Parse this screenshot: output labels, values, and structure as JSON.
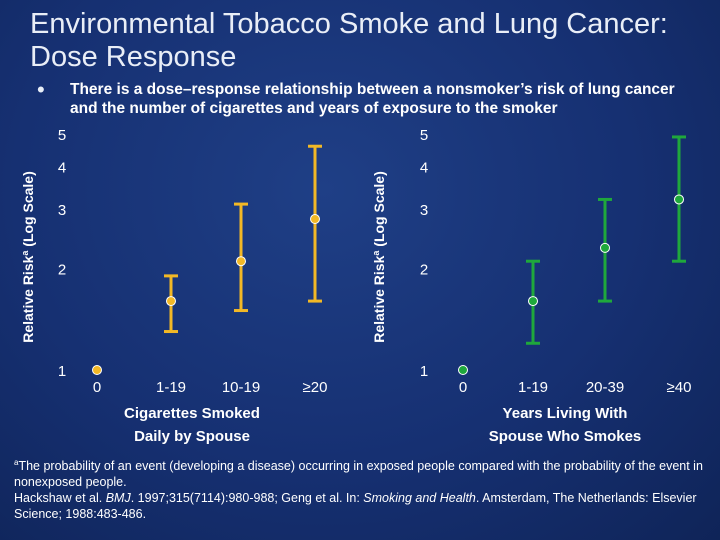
{
  "title": "Environmental Tobacco Smoke and Lung Cancer: Dose Response",
  "bullet": "There is a dose–response relationship between a nonsmoker’s risk of lung cancer and the number of cigarettes and years of exposure to the smoker",
  "footnote": {
    "marker": "a",
    "definition": "The probability of an event (developing a disease) occurring in exposed people compared with the probability of the event in nonexposed people.",
    "ref1_pre": "Hackshaw et al. ",
    "ref1_journal": "BMJ",
    "ref1_post": ". 1997;315(7114):980-988; Geng et al. In: ",
    "ref2_book": "Smoking and Health",
    "ref2_post": ". Amsterdam, The Netherlands: Elsevier Science; 1988:483-486."
  },
  "chart_data": [
    {
      "type": "scatter",
      "scale": "log",
      "ylabel": "Relative Risk",
      "ylabel_superscript": "a",
      "ylabel_suffix": " (Log Scale)",
      "yticks": [
        1,
        2,
        3,
        4,
        5
      ],
      "ylim": [
        1,
        5
      ],
      "categories": [
        "0",
        "1-19",
        "10-19",
        "≥20"
      ],
      "xlabel_line1": "Cigarettes Smoked",
      "xlabel_line2": "Daily by Spouse",
      "color": "#f2b826",
      "points": [
        {
          "x": "0",
          "y": 1.0,
          "low": null,
          "high": null
        },
        {
          "x": "1-19",
          "y": 1.6,
          "low": 1.3,
          "high": 1.9
        },
        {
          "x": "10-19",
          "y": 2.1,
          "low": 1.5,
          "high": 3.1
        },
        {
          "x": "≥20",
          "y": 2.8,
          "low": 1.6,
          "high": 4.6
        }
      ]
    },
    {
      "type": "scatter",
      "scale": "log",
      "ylabel": "Relative Risk",
      "ylabel_superscript": "a",
      "ylabel_suffix": " (Log Scale)",
      "yticks": [
        1,
        2,
        3,
        4,
        5
      ],
      "ylim": [
        1,
        5
      ],
      "categories": [
        "0",
        "1-19",
        "20-39",
        "≥40"
      ],
      "xlabel_line1": "Years Living With",
      "xlabel_line2": "Spouse Who Smokes",
      "color": "#1fa83c",
      "points": [
        {
          "x": "0",
          "y": 1.0,
          "low": null,
          "high": null
        },
        {
          "x": "1-19",
          "y": 1.6,
          "low": 1.2,
          "high": 2.1
        },
        {
          "x": "20-39",
          "y": 2.3,
          "low": 1.6,
          "high": 3.2
        },
        {
          "x": "≥40",
          "y": 3.2,
          "low": 2.1,
          "high": 4.9
        }
      ]
    }
  ]
}
